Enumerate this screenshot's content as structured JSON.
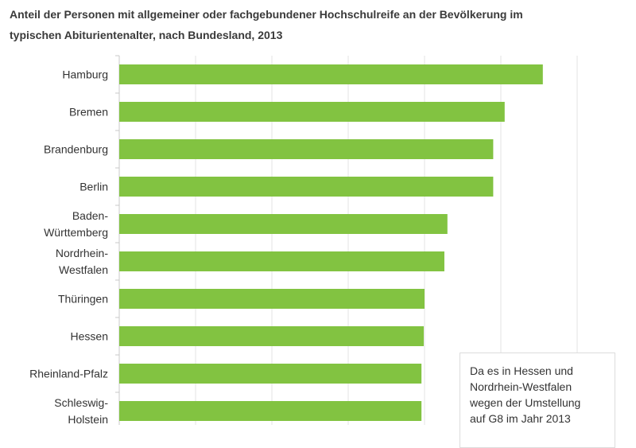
{
  "title_lines": [
    "Anteil der Personen mit allgemeiner oder fachgebundener Hochschulreife an der Bevölkerung im",
    "typischen Abiturientenalter, nach Bundesland, 2013"
  ],
  "note_lines": [
    "Da es in Hessen und",
    "Nordrhein-Westfalen",
    "wegen der Umstellung",
    "auf G8 im Jahr 2013"
  ],
  "colors": {
    "bar": "#82c341",
    "grid": "#e3e3e3",
    "axis": "#c8c8c8"
  },
  "chart_data": {
    "type": "bar",
    "orientation": "horizontal",
    "title": "Anteil der Personen mit allgemeiner oder fachgebundener Hochschulreife an der Bevölkerung im typischen Abiturientenalter, nach Bundesland, 2013",
    "categories": [
      [
        "Hamburg"
      ],
      [
        "Bremen"
      ],
      [
        "Brandenburg"
      ],
      [
        "Berlin"
      ],
      [
        "Baden-",
        "Württemberg"
      ],
      [
        "Nordrhein-",
        "Westfalen"
      ],
      [
        "Thüringen"
      ],
      [
        "Hessen"
      ],
      [
        "Rheinland-Pfalz"
      ],
      [
        "Schleswig-",
        "Holstein"
      ]
    ],
    "values": [
      55.5,
      50.5,
      49.0,
      49.0,
      43.0,
      42.6,
      40.0,
      39.9,
      39.6,
      39.6
    ],
    "xlim": [
      0,
      64
    ],
    "gridlines": [
      0,
      10,
      20,
      30,
      40,
      50,
      60
    ],
    "grid": true
  }
}
